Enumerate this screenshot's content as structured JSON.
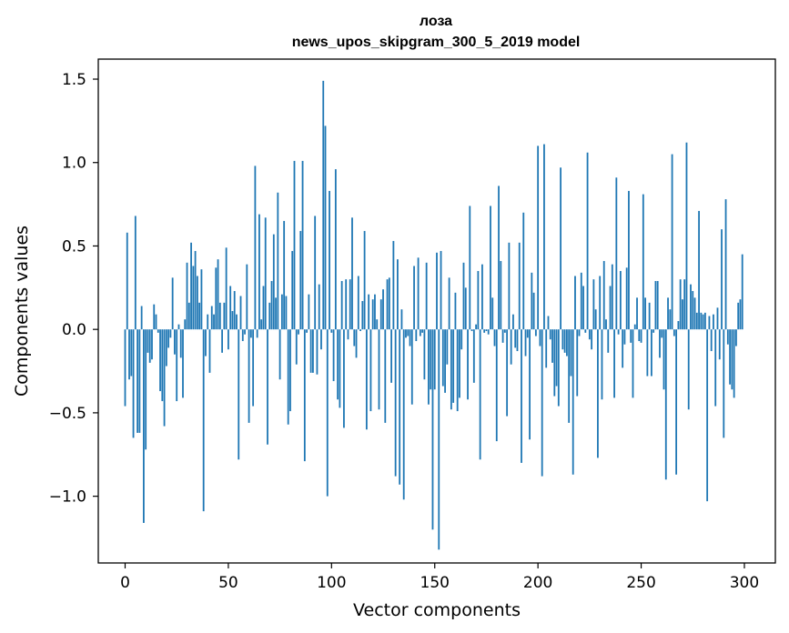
{
  "chart_data": {
    "type": "bar",
    "title": "лоза",
    "subtitle": "news_upos_skipgram_300_5_2019 model",
    "xlabel": "Vector components",
    "ylabel": "Components values",
    "xlim": [
      -13,
      315
    ],
    "ylim": [
      -1.4,
      1.62
    ],
    "xticks": [
      0,
      50,
      100,
      150,
      200,
      250,
      300
    ],
    "xtick_labels": [
      "0",
      "50",
      "100",
      "150",
      "200",
      "250",
      "300"
    ],
    "yticks": [
      -1.0,
      -0.5,
      0.0,
      0.5,
      1.0,
      1.5
    ],
    "ytick_labels": [
      "−1.0",
      "−0.5",
      "0.0",
      "0.5",
      "1.0",
      "1.5"
    ],
    "bar_color": "#1f77b4",
    "values": [
      -0.46,
      0.58,
      -0.3,
      -0.28,
      -0.65,
      0.68,
      -0.62,
      -0.62,
      0.14,
      -1.16,
      -0.72,
      -0.14,
      -0.2,
      -0.18,
      0.15,
      0.09,
      -0.02,
      -0.37,
      -0.43,
      -0.58,
      -0.22,
      -0.11,
      -0.05,
      0.31,
      -0.15,
      -0.43,
      0.03,
      -0.17,
      -0.41,
      0.06,
      0.4,
      0.16,
      0.52,
      0.38,
      0.47,
      0.32,
      0.16,
      0.36,
      -1.09,
      -0.16,
      0.09,
      -0.26,
      0.14,
      0.09,
      0.37,
      0.42,
      0.16,
      -0.14,
      0.16,
      0.49,
      -0.12,
      0.26,
      0.11,
      0.23,
      0.09,
      -0.78,
      0.2,
      -0.07,
      -0.03,
      0.39,
      -0.56,
      -0.05,
      -0.46,
      0.98,
      -0.05,
      0.69,
      0.06,
      0.26,
      0.67,
      -0.69,
      0.16,
      0.29,
      0.57,
      0.19,
      0.82,
      -0.3,
      0.21,
      0.65,
      0.2,
      -0.57,
      -0.49,
      0.47,
      1.01,
      -0.21,
      -0.03,
      0.59,
      1.01,
      -0.79,
      -0.02,
      0.21,
      -0.26,
      -0.26,
      0.68,
      -0.27,
      0.27,
      -0.12,
      1.49,
      1.22,
      -1.0,
      0.83,
      -0.02,
      -0.31,
      0.96,
      -0.42,
      -0.47,
      0.29,
      -0.59,
      0.3,
      -0.06,
      0.3,
      0.67,
      -0.1,
      -0.17,
      0.32,
      -0.01,
      0.17,
      0.59,
      -0.6,
      0.21,
      -0.49,
      0.18,
      0.21,
      0.06,
      -0.48,
      0.18,
      0.24,
      -0.56,
      0.3,
      0.31,
      -0.32,
      0.53,
      -0.88,
      0.42,
      -0.93,
      0.12,
      -1.02,
      -0.05,
      -0.04,
      -0.1,
      -0.45,
      0.38,
      -0.07,
      0.43,
      -0.04,
      -0.02,
      -0.3,
      0.4,
      -0.45,
      -0.36,
      -1.2,
      -0.36,
      0.46,
      -1.32,
      0.47,
      -0.34,
      -0.38,
      -0.21,
      0.31,
      -0.48,
      -0.44,
      0.22,
      -0.49,
      -0.41,
      -0.12,
      0.4,
      0.25,
      -0.42,
      0.74,
      -0.01,
      -0.32,
      0.03,
      0.35,
      -0.78,
      0.39,
      -0.02,
      -0.01,
      -0.03,
      0.74,
      0.19,
      -0.1,
      -0.67,
      0.86,
      0.41,
      -0.08,
      -0.02,
      -0.52,
      0.52,
      -0.21,
      0.09,
      -0.11,
      -0.13,
      0.52,
      -0.8,
      0.7,
      -0.16,
      -0.05,
      -0.66,
      0.34,
      0.22,
      -0.04,
      1.1,
      -0.1,
      -0.88,
      1.11,
      -0.23,
      0.08,
      -0.06,
      -0.2,
      -0.4,
      -0.34,
      -0.46,
      0.97,
      -0.12,
      -0.14,
      -0.16,
      -0.56,
      -0.28,
      -0.87,
      0.32,
      -0.4,
      -0.04,
      0.34,
      0.26,
      -0.02,
      1.06,
      -0.06,
      -0.12,
      0.3,
      0.12,
      -0.77,
      0.32,
      -0.42,
      0.41,
      0.06,
      -0.14,
      0.26,
      0.39,
      -0.41,
      0.91,
      -0.03,
      0.35,
      -0.23,
      -0.09,
      0.37,
      0.83,
      -0.08,
      -0.41,
      0.03,
      0.19,
      -0.07,
      -0.08,
      0.81,
      0.19,
      -0.28,
      0.16,
      -0.28,
      -0.02,
      0.29,
      0.29,
      -0.17,
      -0.05,
      -0.36,
      -0.9,
      0.19,
      0.12,
      1.05,
      -0.04,
      -0.87,
      0.05,
      0.3,
      0.18,
      0.3,
      1.12,
      -0.48,
      0.27,
      0.23,
      0.19,
      0.1,
      0.71,
      0.1,
      0.09,
      0.1,
      -1.03,
      0.08,
      -0.13,
      0.09,
      -0.46,
      0.13,
      -0.18,
      0.6,
      -0.65,
      0.78,
      -0.09,
      -0.33,
      -0.36,
      -0.41,
      -0.1,
      0.16,
      0.18,
      0.45
    ]
  }
}
